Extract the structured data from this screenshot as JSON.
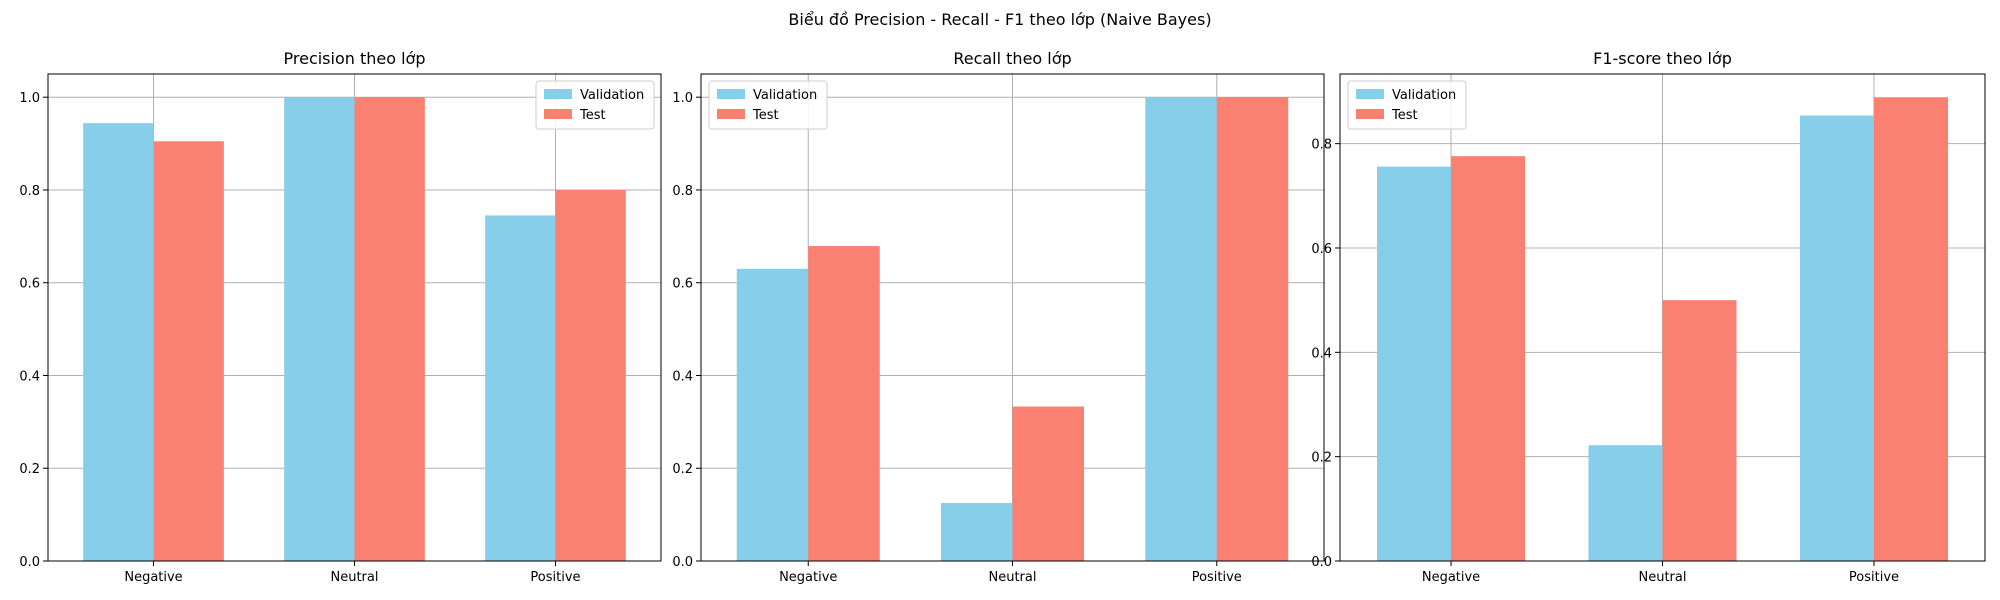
{
  "figure": {
    "suptitle": "Biểu đồ Precision - Recall - F1 theo lớp (Naive Bayes)"
  },
  "colors": {
    "validation": "#87CEEB",
    "test": "#FA8072",
    "grid": "#b0b0b0",
    "axis": "#000000"
  },
  "chart_data": [
    {
      "type": "bar",
      "title": "Precision theo lớp",
      "categories": [
        "Negative",
        "Neutral",
        "Positive"
      ],
      "series": [
        {
          "name": "Validation",
          "values": [
            0.944,
            1.0,
            0.745
          ]
        },
        {
          "name": "Test",
          "values": [
            0.905,
            1.0,
            0.8
          ]
        }
      ],
      "ylim": [
        0,
        1.05
      ],
      "yticks": [
        "0.0",
        "0.2",
        "0.4",
        "0.6",
        "0.8",
        "1.0"
      ],
      "grid": true,
      "legend": "upper right"
    },
    {
      "type": "bar",
      "title": "Recall theo lớp",
      "categories": [
        "Negative",
        "Neutral",
        "Positive"
      ],
      "series": [
        {
          "name": "Validation",
          "values": [
            0.63,
            0.125,
            1.0
          ]
        },
        {
          "name": "Test",
          "values": [
            0.679,
            0.333,
            1.0
          ]
        }
      ],
      "ylim": [
        0,
        1.05
      ],
      "yticks": [
        "0.0",
        "0.2",
        "0.4",
        "0.6",
        "0.8",
        "1.0"
      ],
      "grid": true,
      "legend": "upper left"
    },
    {
      "type": "bar",
      "title": "F1-score theo lớp",
      "categories": [
        "Negative",
        "Neutral",
        "Positive"
      ],
      "series": [
        {
          "name": "Validation",
          "values": [
            0.756,
            0.222,
            0.854
          ]
        },
        {
          "name": "Test",
          "values": [
            0.776,
            0.5,
            0.889
          ]
        }
      ],
      "ylim": [
        0,
        0.9335
      ],
      "yticks": [
        "0.0",
        "0.2",
        "0.4",
        "0.6",
        "0.8"
      ],
      "grid": true,
      "legend": "upper left"
    }
  ]
}
